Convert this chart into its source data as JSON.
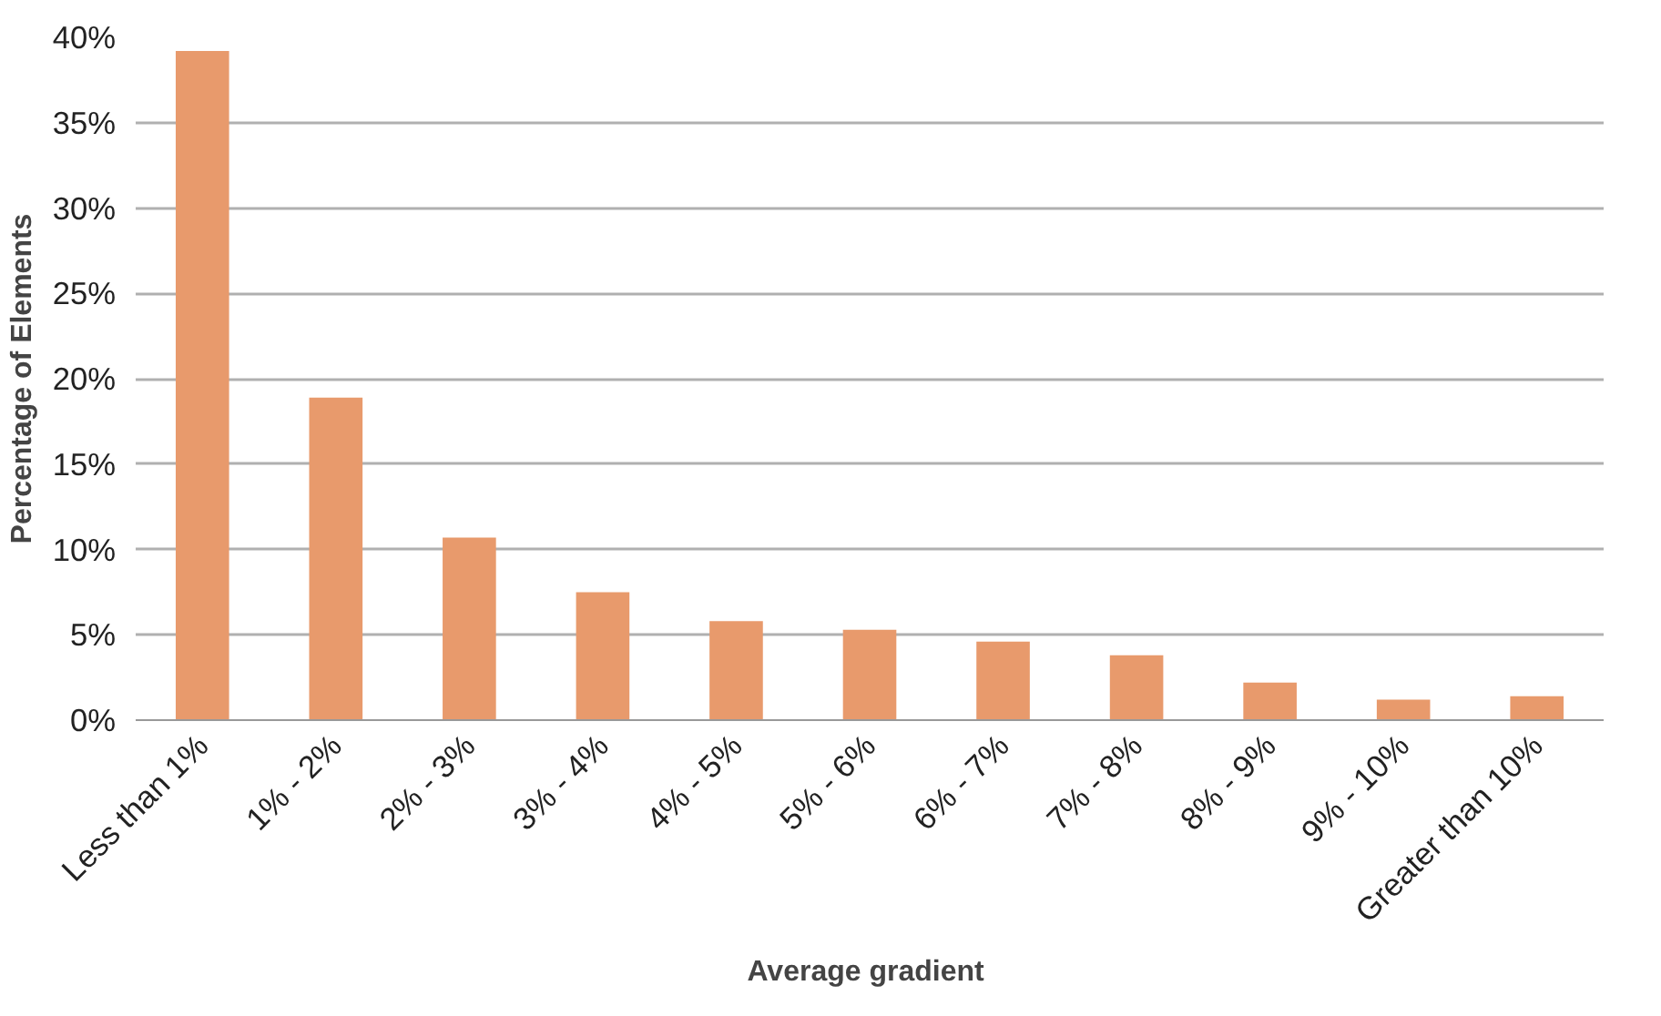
{
  "chart_data": {
    "type": "bar",
    "xlabel": "Average  gradient",
    "ylabel": "Percentage of Elements",
    "categories": [
      "Less than 1%",
      "1% - 2%",
      "2% - 3%",
      "3% - 4%",
      "4% - 5%",
      "5% - 6%",
      "6% - 7%",
      "7% - 8%",
      "8% - 9%",
      "9% - 10%",
      "Greater than 10%"
    ],
    "values": [
      39.2,
      18.9,
      10.7,
      7.5,
      5.8,
      5.3,
      4.6,
      3.8,
      2.2,
      1.2,
      1.4
    ],
    "color": "#e89a6c",
    "ylim": [
      0,
      40
    ],
    "yticks": [
      {
        "value": 0,
        "label": "0%"
      },
      {
        "value": 5,
        "label": "5%"
      },
      {
        "value": 10,
        "label": "10%"
      },
      {
        "value": 15,
        "label": "15%"
      },
      {
        "value": 20,
        "label": "20%"
      },
      {
        "value": 25,
        "label": "25%"
      },
      {
        "value": 30,
        "label": "30%"
      },
      {
        "value": 35,
        "label": "35%"
      },
      {
        "value": 40,
        "label": "40%"
      }
    ],
    "grid": "y"
  }
}
